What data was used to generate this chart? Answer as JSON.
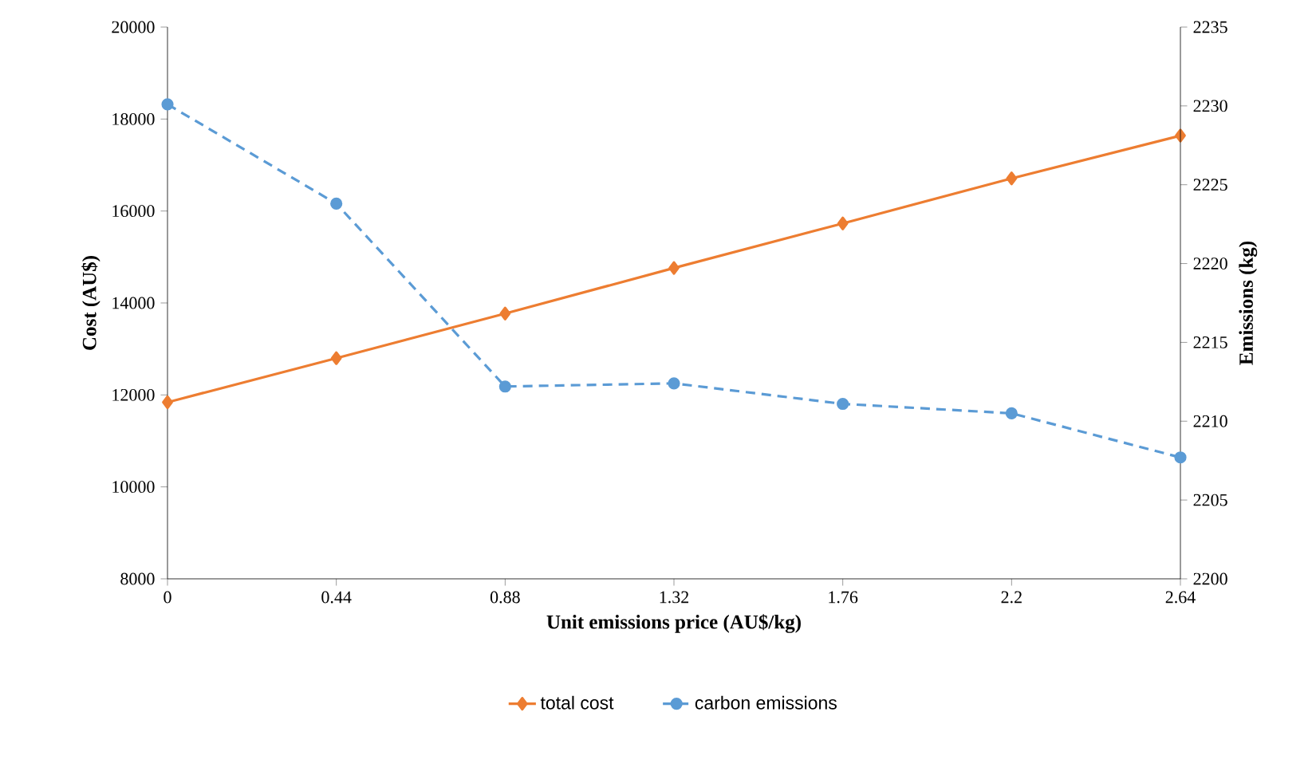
{
  "chart_data": {
    "type": "line",
    "xlabel": "Unit  emissions price (AU$/kg)",
    "ylabel": "Cost (AU$)",
    "y2label": "Emissions  (kg)",
    "x": [
      0,
      0.44,
      0.88,
      1.32,
      1.76,
      2.2,
      2.64
    ],
    "xlim": [
      0,
      2.64
    ],
    "xticks": [
      0,
      0.44,
      0.88,
      1.32,
      1.76,
      2.2,
      2.64
    ],
    "ylim": [
      8000,
      20000
    ],
    "yticks": [
      8000,
      10000,
      12000,
      14000,
      16000,
      18000,
      20000
    ],
    "y2lim": [
      2200,
      2235
    ],
    "y2ticks": [
      2200,
      2205,
      2210,
      2215,
      2220,
      2225,
      2230,
      2235
    ],
    "series": [
      {
        "name": "total cost",
        "color": "#ed7d31",
        "marker": "diamond",
        "line_style": "solid",
        "values": [
          11840,
          12800,
          13770,
          14760,
          15730,
          16710,
          17640
        ]
      },
      {
        "name": "carbon emissions",
        "color": "#5b9bd5",
        "marker": "circle",
        "line_style": "dashed",
        "axis": "y2",
        "values": [
          2230.1,
          2223.8,
          2212.2,
          2212.4,
          2211.1,
          2210.5,
          2207.7
        ]
      }
    ],
    "grid": false,
    "legend": "bottom"
  }
}
